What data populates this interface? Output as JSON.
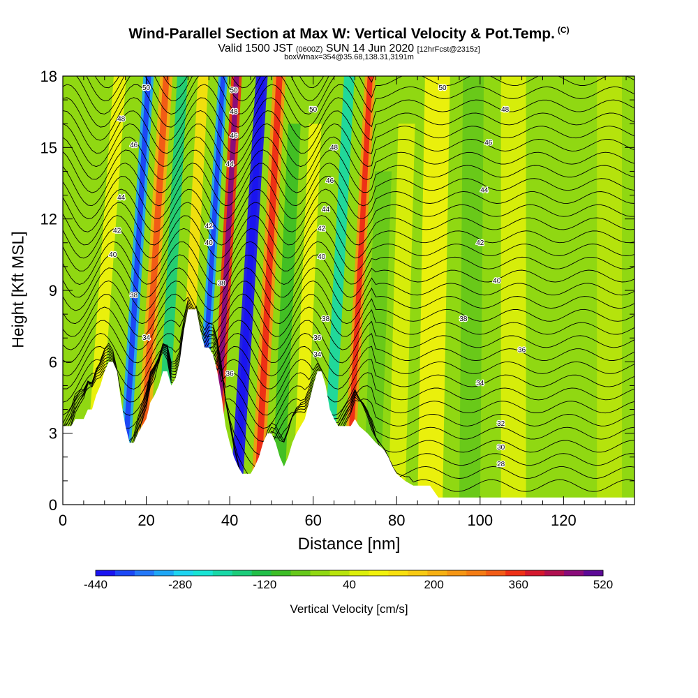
{
  "header": {
    "title": "Wind-Parallel Section at Max W: Vertical Velocity & Pot.Temp.",
    "copyright": "(C)",
    "valid_main": "Valid 1500 JST",
    "valid_utc": "(0600Z)",
    "valid_date": "SUN 14 Jun 2020",
    "forecast": "[12hrFcst@2315z]",
    "box": "boxWmax=354@35.68,138.31,3191m"
  },
  "chart_data": {
    "type": "heatmap",
    "title": "Wind-Parallel Section at Max W: Vertical Velocity & Pot.Temp.",
    "xlabel": "Distance [nm]",
    "ylabel": "Height [Kft MSL]",
    "xlim": [
      0,
      137
    ],
    "ylim": [
      0,
      18
    ],
    "x_ticks": [
      "0",
      "20",
      "40",
      "60",
      "80",
      "100",
      "120"
    ],
    "y_ticks": [
      "0",
      "3",
      "6",
      "9",
      "12",
      "15",
      "18"
    ],
    "colorbar": {
      "label": "Vertical Velocity [cm/s]",
      "ticks": [
        "-440",
        "-280",
        "-120",
        "40",
        "200",
        "360",
        "520"
      ],
      "min": -440,
      "max": 520,
      "step": 40,
      "colors": [
        "#1a14f0",
        "#1c48f5",
        "#2478f8",
        "#1ea6f5",
        "#1ed4f0",
        "#18e4d4",
        "#18d8a6",
        "#1ccc7a",
        "#22bf48",
        "#3cbd26",
        "#66c81a",
        "#90d812",
        "#b8e40c",
        "#dcef0a",
        "#f2f20c",
        "#f8e00e",
        "#f8ca12",
        "#f6b012",
        "#f59614",
        "#f47c14",
        "#f25c16",
        "#ee3016",
        "#d4182e",
        "#b01050",
        "#8a0c7a",
        "#5c0a96"
      ]
    },
    "terrain_kft": [
      [
        0,
        3.3
      ],
      [
        2,
        3.3
      ],
      [
        3,
        3.6
      ],
      [
        5,
        3.6
      ],
      [
        6,
        4.0
      ],
      [
        7,
        4.0
      ],
      [
        8,
        4.6
      ],
      [
        9,
        5.0
      ],
      [
        10,
        5.6
      ],
      [
        11,
        6.0
      ],
      [
        12,
        6.0
      ],
      [
        13,
        5.6
      ],
      [
        14,
        4.3
      ],
      [
        15,
        3.3
      ],
      [
        16,
        2.6
      ],
      [
        17,
        2.6
      ],
      [
        18,
        3.0
      ],
      [
        19,
        3.3
      ],
      [
        20,
        3.6
      ],
      [
        21,
        4.3
      ],
      [
        22,
        4.6
      ],
      [
        23,
        5.0
      ],
      [
        24,
        5.6
      ],
      [
        25,
        5.6
      ],
      [
        26,
        5.0
      ],
      [
        27,
        5.3
      ],
      [
        28,
        6.0
      ],
      [
        29,
        7.3
      ],
      [
        30,
        8.2
      ],
      [
        32,
        8.2
      ],
      [
        33,
        7.3
      ],
      [
        34,
        6.6
      ],
      [
        35,
        6.6
      ],
      [
        36,
        6.3
      ],
      [
        37,
        5.6
      ],
      [
        38,
        4.6
      ],
      [
        39,
        3.3
      ],
      [
        40,
        2.6
      ],
      [
        41,
        2.0
      ],
      [
        42,
        1.6
      ],
      [
        43,
        1.3
      ],
      [
        45,
        1.3
      ],
      [
        46,
        1.6
      ],
      [
        47,
        2.0
      ],
      [
        48,
        2.6
      ],
      [
        49,
        3.0
      ],
      [
        50,
        3.0
      ],
      [
        51,
        2.6
      ],
      [
        52,
        2.0
      ],
      [
        53,
        1.6
      ],
      [
        54,
        2.0
      ],
      [
        55,
        2.6
      ],
      [
        56,
        3.0
      ],
      [
        57,
        3.3
      ],
      [
        58,
        3.6
      ],
      [
        59,
        4.3
      ],
      [
        60,
        5.0
      ],
      [
        61,
        5.6
      ],
      [
        62,
        5.6
      ],
      [
        63,
        5.0
      ],
      [
        64,
        4.0
      ],
      [
        65,
        3.6
      ],
      [
        66,
        3.3
      ],
      [
        69,
        3.3
      ],
      [
        70,
        3.6
      ],
      [
        71,
        3.3
      ],
      [
        73,
        3.0
      ],
      [
        75,
        2.6
      ],
      [
        77,
        2.3
      ],
      [
        78,
        2.0
      ],
      [
        79,
        1.6
      ],
      [
        80,
        1.3
      ],
      [
        82,
        1.0
      ],
      [
        84,
        0.8
      ],
      [
        88,
        0.8
      ],
      [
        90,
        0.3
      ],
      [
        137,
        0.3
      ]
    ],
    "velocity_bands": [
      {
        "x": 5,
        "width": 3,
        "lean": 0.4,
        "value": 120,
        "top": 18
      },
      {
        "x": 13,
        "width": 2.5,
        "lean": 0.35,
        "value": -320,
        "top": 18
      },
      {
        "x": 17,
        "width": 3,
        "lean": 0.35,
        "value": 240,
        "top": 18
      },
      {
        "x": 22,
        "width": 2.5,
        "lean": 0.3,
        "value": -160,
        "top": 18
      },
      {
        "x": 27,
        "width": 2.5,
        "lean": 0.3,
        "value": 160,
        "top": 18
      },
      {
        "x": 31,
        "width": 2.2,
        "lean": 0.35,
        "value": -300,
        "top": 18
      },
      {
        "x": 35,
        "width": 2.5,
        "lean": 0.3,
        "value": 420,
        "top": 18
      },
      {
        "x": 40,
        "width": 2.8,
        "lean": 0.35,
        "value": -440,
        "top": 18
      },
      {
        "x": 45,
        "width": 3,
        "lean": 0.3,
        "value": 280,
        "top": 18
      },
      {
        "x": 50,
        "width": 3,
        "lean": 0.25,
        "value": -80,
        "top": 16
      },
      {
        "x": 55,
        "width": 3,
        "lean": 0.25,
        "value": 120,
        "top": 16
      },
      {
        "x": 62,
        "width": 2.5,
        "lean": 0.3,
        "value": -200,
        "top": 18
      },
      {
        "x": 67,
        "width": 2.5,
        "lean": 0.3,
        "value": 280,
        "top": 18
      },
      {
        "x": 72,
        "width": 4,
        "lean": 0.2,
        "value": -40,
        "top": 14
      },
      {
        "x": 78,
        "width": 4,
        "lean": 0.15,
        "value": 80,
        "top": 16
      },
      {
        "x": 85,
        "width": 6,
        "lean": 0.1,
        "value": 120,
        "top": 18
      },
      {
        "x": 95,
        "width": 5,
        "lean": 0.05,
        "value": -40,
        "top": 18
      },
      {
        "x": 105,
        "width": 6,
        "lean": 0.0,
        "value": 80,
        "top": 18
      },
      {
        "x": 117,
        "width": 8,
        "lean": 0.0,
        "value": 0,
        "top": 18
      },
      {
        "x": 128,
        "width": 6,
        "lean": 0.0,
        "value": 40,
        "top": 18
      }
    ],
    "theta_labels": [
      {
        "x": 20,
        "y": 7.0,
        "text": "34"
      },
      {
        "x": 105,
        "y": 3.4,
        "text": "32"
      },
      {
        "x": 105,
        "y": 2.4,
        "text": "30"
      },
      {
        "x": 105,
        "y": 1.7,
        "text": "28"
      },
      {
        "x": 100,
        "y": 5.1,
        "text": "34"
      },
      {
        "x": 110,
        "y": 6.5,
        "text": "36"
      },
      {
        "x": 96,
        "y": 7.8,
        "text": "38"
      },
      {
        "x": 104,
        "y": 9.4,
        "text": "40"
      },
      {
        "x": 100,
        "y": 11.0,
        "text": "42"
      },
      {
        "x": 101,
        "y": 13.2,
        "text": "44"
      },
      {
        "x": 102,
        "y": 15.2,
        "text": "46"
      },
      {
        "x": 106,
        "y": 16.6,
        "text": "48"
      },
      {
        "x": 91,
        "y": 17.5,
        "text": "50"
      },
      {
        "x": 14,
        "y": 16.2,
        "text": "48"
      },
      {
        "x": 17,
        "y": 15.1,
        "text": "46"
      },
      {
        "x": 14,
        "y": 12.9,
        "text": "44"
      },
      {
        "x": 13,
        "y": 11.5,
        "text": "42"
      },
      {
        "x": 12,
        "y": 10.5,
        "text": "40"
      },
      {
        "x": 17,
        "y": 8.8,
        "text": "38"
      },
      {
        "x": 35,
        "y": 11.7,
        "text": "42"
      },
      {
        "x": 35,
        "y": 11.0,
        "text": "40"
      },
      {
        "x": 38,
        "y": 9.3,
        "text": "38"
      },
      {
        "x": 40,
        "y": 14.3,
        "text": "44"
      },
      {
        "x": 41,
        "y": 15.5,
        "text": "46"
      },
      {
        "x": 41,
        "y": 16.5,
        "text": "48"
      },
      {
        "x": 41,
        "y": 17.4,
        "text": "50"
      },
      {
        "x": 20,
        "y": 17.5,
        "text": "50"
      },
      {
        "x": 60,
        "y": 16.6,
        "text": "50"
      },
      {
        "x": 65,
        "y": 15.0,
        "text": "48"
      },
      {
        "x": 64,
        "y": 13.6,
        "text": "46"
      },
      {
        "x": 63,
        "y": 12.4,
        "text": "44"
      },
      {
        "x": 62,
        "y": 11.6,
        "text": "42"
      },
      {
        "x": 62,
        "y": 10.4,
        "text": "40"
      },
      {
        "x": 63,
        "y": 7.8,
        "text": "38"
      },
      {
        "x": 61,
        "y": 7.0,
        "text": "36"
      },
      {
        "x": 61,
        "y": 6.3,
        "text": "34"
      },
      {
        "x": 40,
        "y": 5.5,
        "text": "36"
      }
    ]
  }
}
